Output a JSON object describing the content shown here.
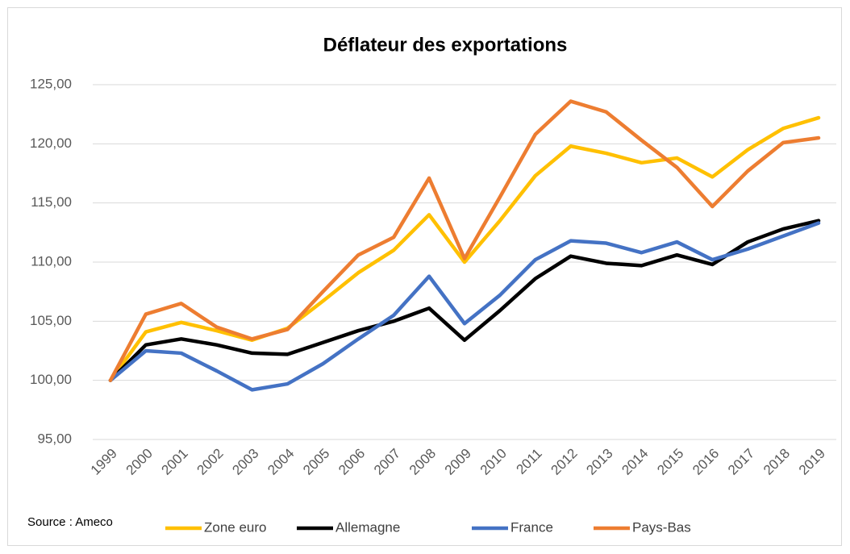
{
  "chart_data": {
    "type": "line",
    "title": "Déflateur des exportations",
    "annotation": "Source : Ameco",
    "categories": [
      "1999",
      "2000",
      "2001",
      "2002",
      "2003",
      "2004",
      "2005",
      "2006",
      "2007",
      "2008",
      "2009",
      "2010",
      "2011",
      "2012",
      "2013",
      "2014",
      "2015",
      "2016",
      "2017",
      "2018",
      "2019"
    ],
    "series": [
      {
        "name": "Zone euro",
        "color": "#FFC000",
        "values": [
          100,
          104.1,
          104.9,
          104.2,
          103.4,
          104.4,
          106.7,
          109.1,
          111.0,
          114.0,
          110.0,
          113.5,
          117.3,
          119.8,
          119.2,
          118.4,
          118.8,
          117.2,
          119.5,
          121.3,
          122.2
        ]
      },
      {
        "name": "Allemagne",
        "color": "#000000",
        "values": [
          100,
          103.0,
          103.5,
          103.0,
          102.3,
          102.2,
          103.2,
          104.2,
          105.0,
          106.1,
          103.4,
          105.9,
          108.6,
          110.5,
          109.9,
          109.7,
          110.6,
          109.8,
          111.7,
          112.8,
          113.5
        ]
      },
      {
        "name": "France",
        "color": "#4472C4",
        "values": [
          100,
          102.5,
          102.3,
          100.8,
          99.2,
          99.7,
          101.4,
          103.5,
          105.5,
          108.8,
          104.8,
          107.2,
          110.2,
          111.8,
          111.6,
          110.8,
          111.7,
          110.2,
          111.1,
          112.2,
          113.3
        ]
      },
      {
        "name": "Pays-Bas",
        "color": "#ED7D31",
        "values": [
          100,
          105.6,
          106.5,
          104.5,
          103.5,
          104.3,
          107.5,
          110.6,
          112.1,
          117.1,
          110.3,
          115.5,
          120.8,
          123.6,
          122.7,
          120.3,
          118.0,
          114.7,
          117.7,
          120.1,
          120.5
        ]
      }
    ],
    "ylim": [
      95,
      125
    ],
    "yticks": [
      {
        "value": 95,
        "label": "95,00"
      },
      {
        "value": 100,
        "label": "100,00"
      },
      {
        "value": 105,
        "label": "105,00"
      },
      {
        "value": 110,
        "label": "110,00"
      },
      {
        "value": 115,
        "label": "115,00"
      },
      {
        "value": 120,
        "label": "120,00"
      },
      {
        "value": 125,
        "label": "125,00"
      }
    ],
    "grid": true,
    "legend": "bottom"
  }
}
